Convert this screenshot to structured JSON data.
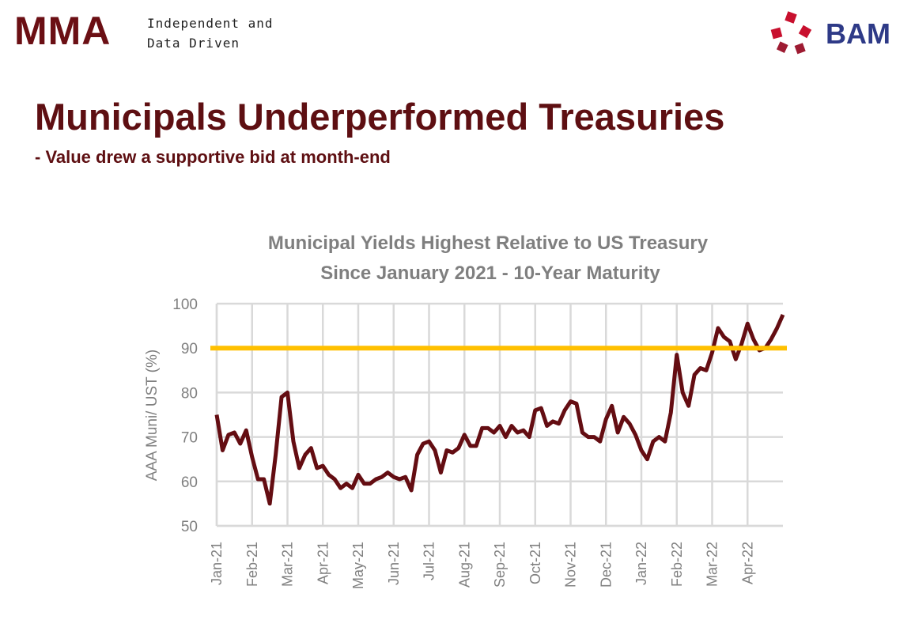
{
  "header": {
    "logo": "MMA",
    "tagline": [
      "Independent and",
      "Data Driven"
    ],
    "partner_logo": "BAM"
  },
  "slide": {
    "title": "Municipals Underperformed Treasuries",
    "subtitle": "- Value drew a supportive bid at month-end"
  },
  "chart_data": {
    "type": "line",
    "title": "Municipal Yields Highest Relative to US Treasury",
    "subtitle": "Since January 2021 - 10-Year Maturity",
    "y_label": "AAA Muni/ UST (%)",
    "categories": [
      "Jan-21",
      null,
      null,
      null,
      null,
      null,
      "Feb-21",
      null,
      null,
      null,
      null,
      null,
      "Mar-21",
      null,
      null,
      null,
      null,
      null,
      "Apr-21",
      null,
      null,
      null,
      null,
      null,
      "May-21",
      null,
      null,
      null,
      null,
      null,
      "Jun-21",
      null,
      null,
      null,
      null,
      null,
      "Jul-21",
      null,
      null,
      null,
      null,
      null,
      "Aug-21",
      null,
      null,
      null,
      null,
      null,
      "Sep-21",
      null,
      null,
      null,
      null,
      null,
      "Oct-21",
      null,
      null,
      null,
      null,
      null,
      "Nov-21",
      null,
      null,
      null,
      null,
      null,
      "Dec-21",
      null,
      null,
      null,
      null,
      null,
      "Jan-22",
      null,
      null,
      null,
      null,
      null,
      "Feb-22",
      null,
      null,
      null,
      null,
      null,
      "Mar-22",
      null,
      null,
      null,
      null,
      null,
      "Apr-22",
      null,
      null,
      null,
      null,
      null,
      null
    ],
    "values": [
      75,
      67,
      70.5,
      71,
      68.5,
      71.5,
      65.5,
      60.5,
      60.5,
      55,
      66,
      79,
      80,
      69,
      63,
      66,
      67.5,
      63,
      63.5,
      61.5,
      60.5,
      58.5,
      59.5,
      58.5,
      61.5,
      59.5,
      59.5,
      60.5,
      61,
      62,
      61,
      60.5,
      61,
      58,
      66,
      68.5,
      69,
      67,
      62,
      67,
      66.5,
      67.5,
      70.5,
      68,
      68,
      72,
      72,
      71,
      72.5,
      70,
      72.5,
      71,
      71.5,
      70,
      76,
      76.5,
      72.5,
      73.5,
      73,
      76,
      78,
      77.5,
      71,
      70,
      70,
      69,
      74,
      77,
      71,
      74.5,
      73,
      70.5,
      67,
      65,
      69,
      70,
      69,
      75.5,
      88.5,
      80,
      77,
      84,
      85.5,
      85,
      89,
      94.5,
      92.5,
      91.5,
      87.5,
      91,
      95.5,
      92,
      89.5,
      90,
      92,
      94.5,
      97.5
    ],
    "color": "#640d12",
    "reference_line": {
      "value": 90,
      "color": "#ffc000"
    },
    "ylim": [
      50,
      100
    ],
    "yticks": [
      50,
      60,
      70,
      80,
      90,
      100
    ],
    "grid": true
  }
}
